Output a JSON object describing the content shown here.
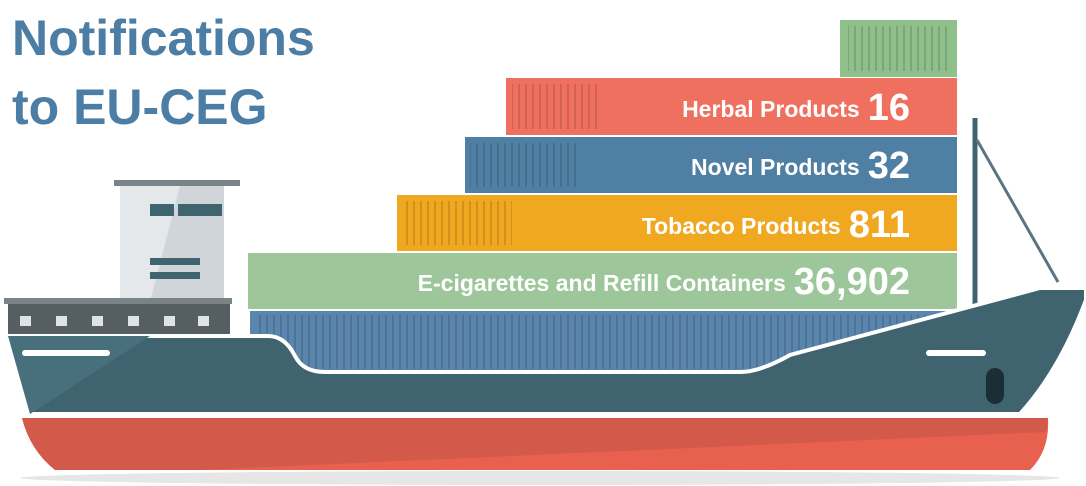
{
  "title": {
    "line1": "Notifications",
    "line2": "to EU-CEG"
  },
  "rows": [
    {
      "label": "Herbal Products",
      "value": "16"
    },
    {
      "label": "Novel Products",
      "value": "32"
    },
    {
      "label": "Tobacco Products",
      "value": "811"
    },
    {
      "label": "E-cigarettes and Refill Containers",
      "value": "36,902"
    }
  ]
}
